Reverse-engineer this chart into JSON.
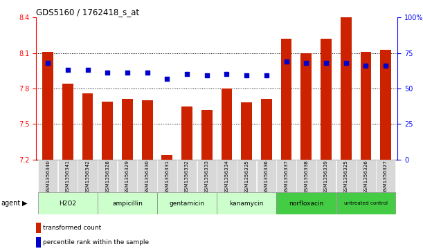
{
  "title": "GDS5160 / 1762418_s_at",
  "samples": [
    "GSM1356340",
    "GSM1356341",
    "GSM1356342",
    "GSM1356328",
    "GSM1356329",
    "GSM1356330",
    "GSM1356331",
    "GSM1356332",
    "GSM1356333",
    "GSM1356334",
    "GSM1356335",
    "GSM1356336",
    "GSM1356337",
    "GSM1356338",
    "GSM1356339",
    "GSM1356325",
    "GSM1356326",
    "GSM1356327"
  ],
  "bar_values": [
    8.11,
    7.84,
    7.76,
    7.69,
    7.71,
    7.7,
    7.24,
    7.65,
    7.62,
    7.8,
    7.68,
    7.71,
    8.22,
    8.1,
    8.22,
    8.4,
    8.11,
    8.13
  ],
  "dot_values": [
    68,
    63,
    63,
    61,
    61,
    61,
    57,
    60,
    59,
    60,
    59,
    59,
    69,
    68,
    68,
    68,
    66,
    66
  ],
  "groups": [
    {
      "label": "H2O2",
      "start": 0,
      "end": 2,
      "color": "#ccffcc"
    },
    {
      "label": "ampicillin",
      "start": 3,
      "end": 5,
      "color": "#ccffcc"
    },
    {
      "label": "gentamicin",
      "start": 6,
      "end": 8,
      "color": "#ccffcc"
    },
    {
      "label": "kanamycin",
      "start": 9,
      "end": 11,
      "color": "#ccffcc"
    },
    {
      "label": "norfloxacin",
      "start": 12,
      "end": 14,
      "color": "#44cc44"
    },
    {
      "label": "untreated control",
      "start": 15,
      "end": 17,
      "color": "#44cc44"
    }
  ],
  "ylim_left": [
    7.2,
    8.4
  ],
  "ylim_right": [
    0,
    100
  ],
  "yticks_left": [
    7.2,
    7.5,
    7.8,
    8.1,
    8.4
  ],
  "yticks_right": [
    0,
    25,
    50,
    75,
    100
  ],
  "bar_color": "#cc2200",
  "dot_color": "#0000cc",
  "bar_width": 0.55,
  "ybase": 7.2,
  "grid_yticks": [
    7.5,
    7.8,
    8.1
  ]
}
